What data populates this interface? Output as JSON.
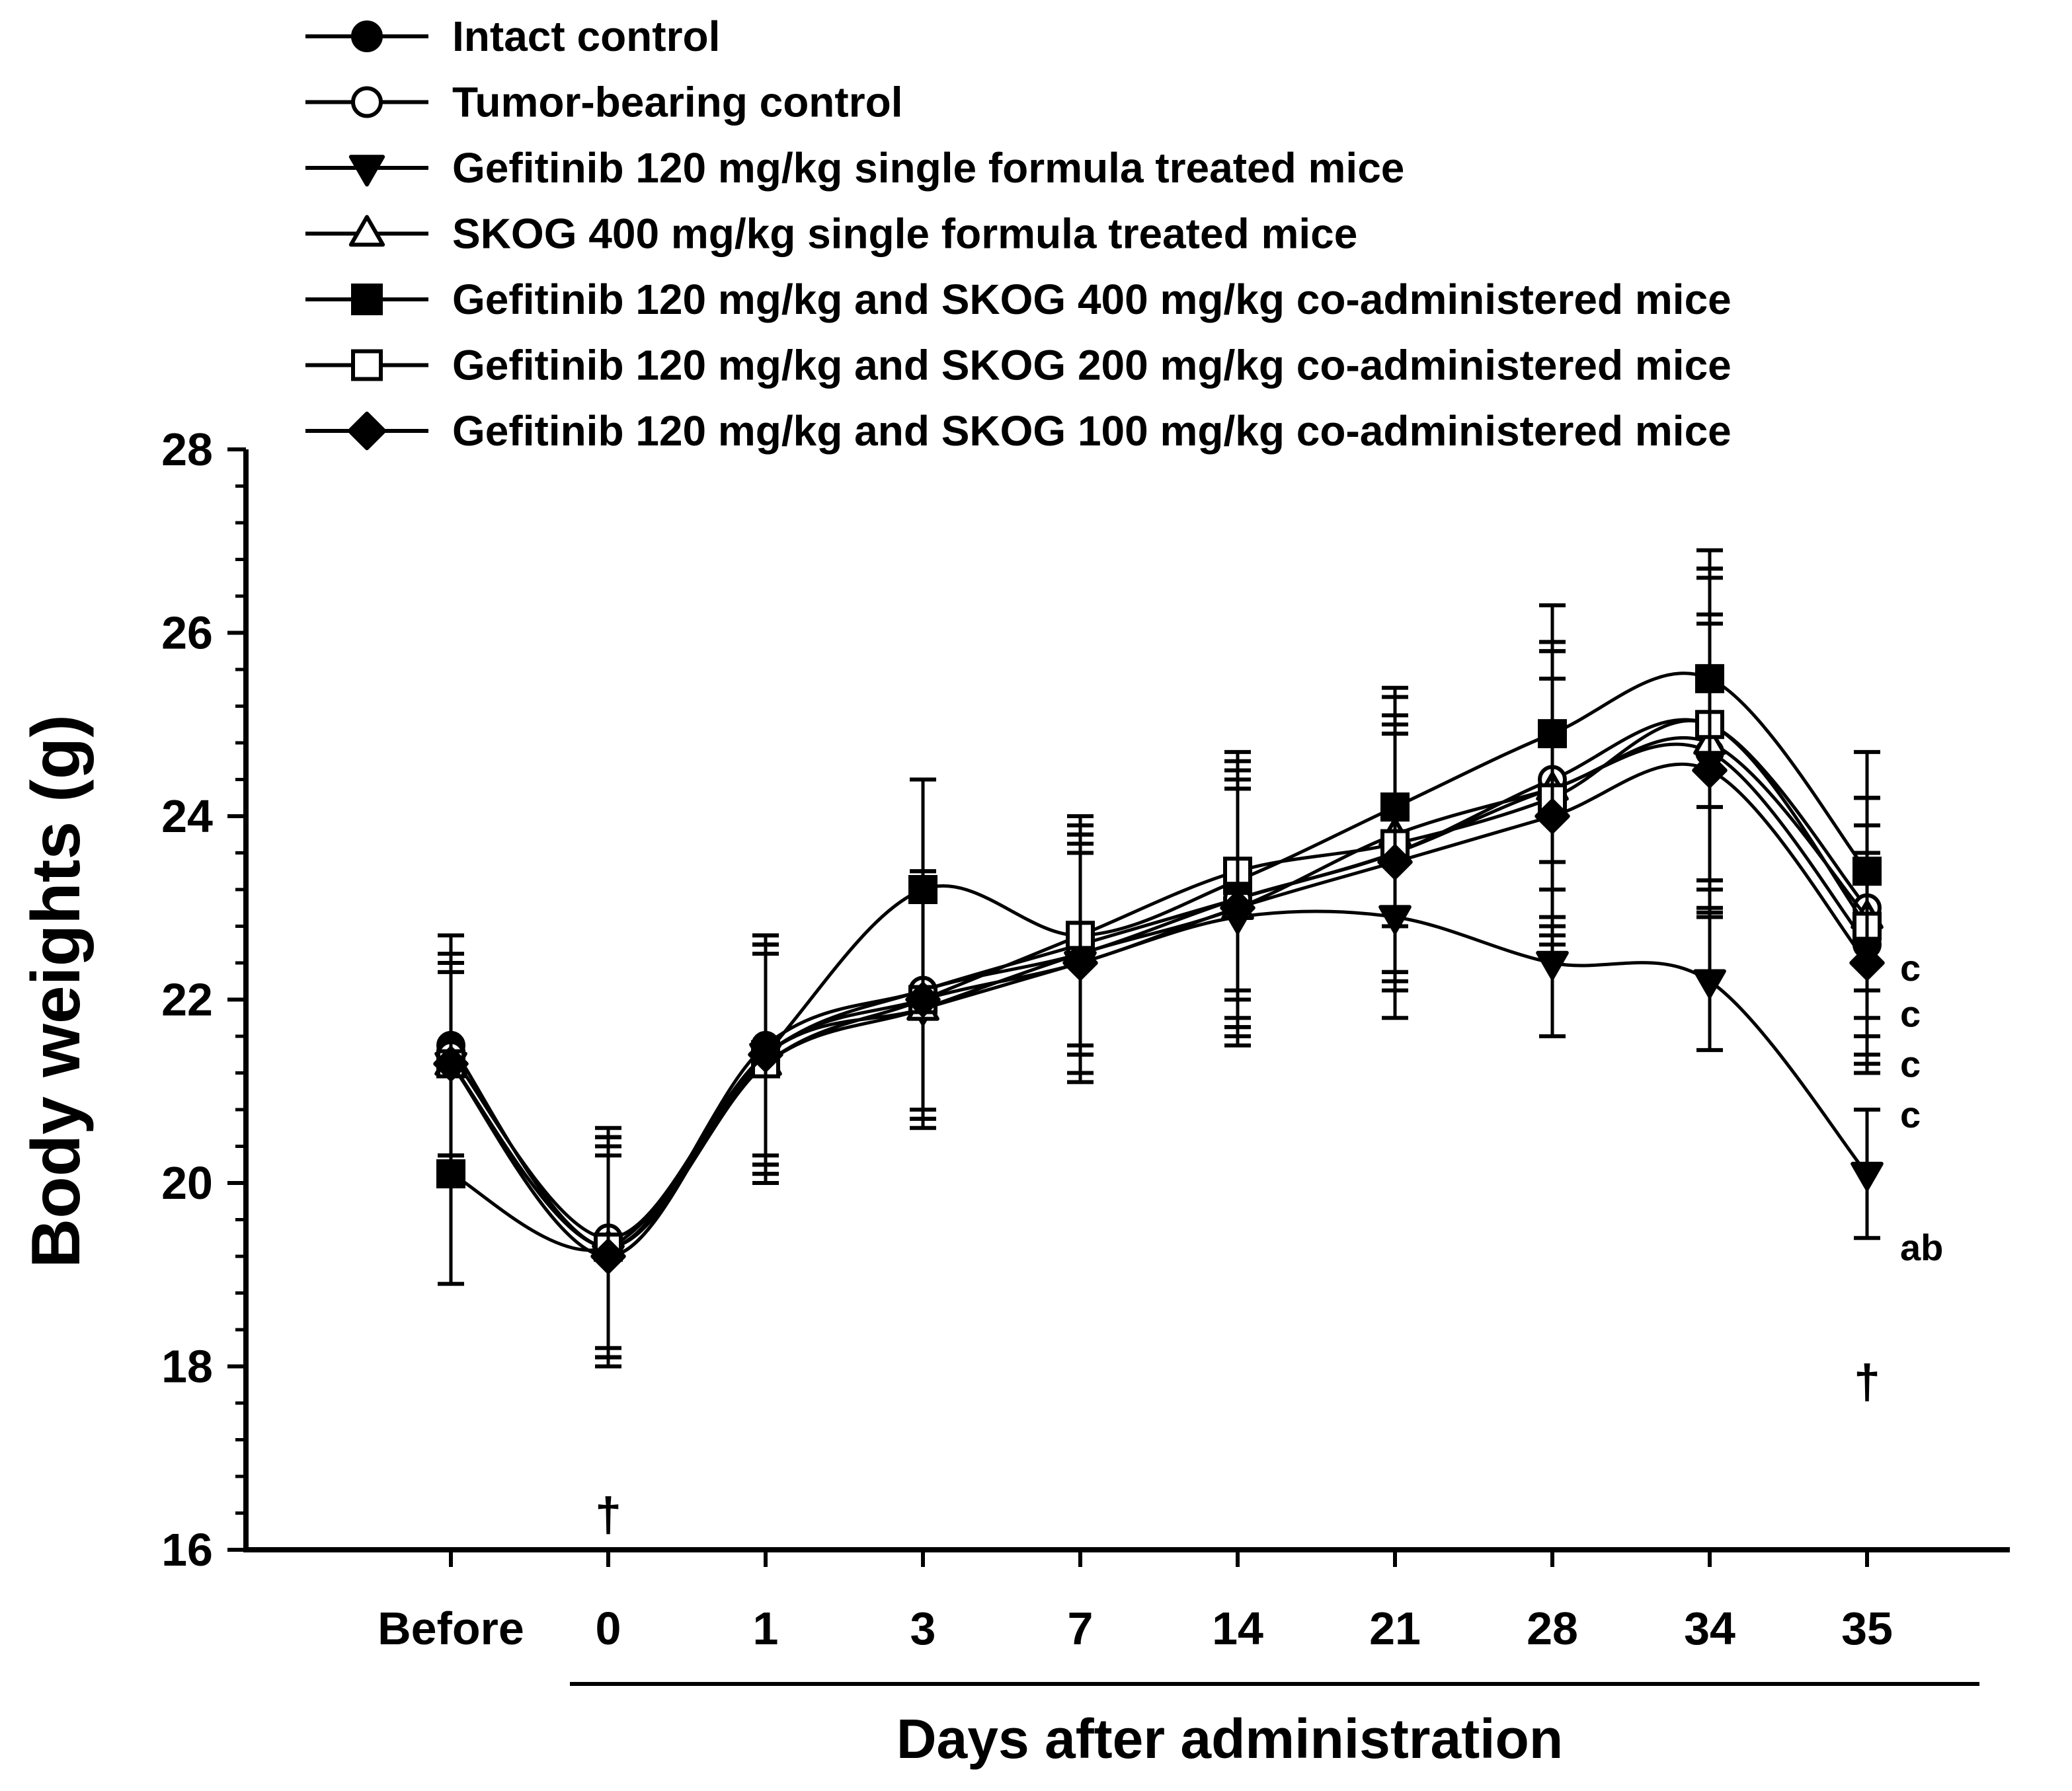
{
  "chart_data": {
    "type": "line",
    "xlabel": "Days after administration",
    "ylabel": "Body weights (g)",
    "ylim": [
      16,
      28
    ],
    "yticks": [
      16,
      18,
      20,
      22,
      24,
      26,
      28
    ],
    "categories": [
      "Before",
      "0",
      "1",
      "3",
      "7",
      "14",
      "21",
      "28",
      "34",
      "35"
    ],
    "legend_position": "top",
    "series": [
      {
        "name": "Intact control",
        "marker": "filled-circle",
        "values": [
          21.5,
          19.3,
          21.5,
          22.1,
          22.6,
          23.1,
          23.6,
          24.3,
          24.7,
          22.6
        ],
        "errors": [
          1.2,
          1.2,
          1.2,
          1.3,
          1.2,
          1.3,
          1.3,
          1.5,
          1.5,
          1.3
        ]
      },
      {
        "name": "Tumor-bearing control",
        "marker": "open-circle",
        "values": [
          21.4,
          19.4,
          21.4,
          22.1,
          22.5,
          23.1,
          23.6,
          24.4,
          25.0,
          23.0
        ],
        "errors": [
          1.1,
          1.2,
          1.3,
          1.3,
          1.3,
          1.4,
          1.4,
          1.5,
          1.7,
          1.2
        ]
      },
      {
        "name": "Gefitinib 120 mg/kg single formula treated mice",
        "marker": "filled-triangle-down",
        "values": [
          21.3,
          19.2,
          21.4,
          21.9,
          22.4,
          22.9,
          22.9,
          22.4,
          22.2,
          20.1
        ],
        "errors": [
          1.0,
          1.1,
          1.2,
          1.2,
          1.3,
          1.4,
          1.1,
          0.8,
          0.75,
          0.7
        ]
      },
      {
        "name": "SKOG 400 mg/kg single formula treated mice",
        "marker": "open-triangle-up",
        "values": [
          21.3,
          19.3,
          21.3,
          21.9,
          22.5,
          23.0,
          23.8,
          24.3,
          24.8,
          22.9
        ],
        "errors": [
          1.1,
          1.2,
          1.3,
          1.3,
          1.3,
          1.4,
          1.5,
          1.6,
          1.8,
          1.3
        ]
      },
      {
        "name": "Gefitinib 120 mg/kg and SKOG 400 mg/kg co-administered mice",
        "marker": "filled-square",
        "values": [
          20.1,
          19.3,
          21.4,
          23.2,
          22.7,
          23.3,
          24.1,
          24.9,
          25.5,
          23.4
        ],
        "errors": [
          1.2,
          1.2,
          1.2,
          1.2,
          1.2,
          1.3,
          1.3,
          1.4,
          1.4,
          1.3
        ]
      },
      {
        "name": "Gefitinib 120 mg/kg and SKOG 200 mg/kg co-administered mice",
        "marker": "open-square",
        "values": [
          21.3,
          19.3,
          21.3,
          22.0,
          22.7,
          23.4,
          23.7,
          24.2,
          25.0,
          22.8
        ],
        "errors": [
          1.1,
          1.2,
          1.2,
          1.3,
          1.3,
          1.3,
          1.4,
          1.6,
          1.7,
          1.4
        ]
      },
      {
        "name": "Gefitinib 120 mg/kg and SKOG 100 mg/kg co-administered mice",
        "marker": "filled-diamond",
        "values": [
          21.3,
          19.2,
          21.4,
          22.0,
          22.4,
          23.0,
          23.5,
          24.0,
          24.5,
          22.4
        ],
        "errors": [
          1.1,
          1.2,
          1.2,
          1.2,
          1.2,
          1.3,
          1.4,
          1.5,
          1.6,
          1.2
        ]
      }
    ],
    "annotations": [
      {
        "text": "c",
        "category": "35",
        "y": 22.35
      },
      {
        "text": "c",
        "category": "35",
        "y": 21.85
      },
      {
        "text": "c",
        "category": "35",
        "y": 21.3
      },
      {
        "text": "c",
        "category": "35",
        "y": 20.75
      },
      {
        "text": "ab",
        "category": "35",
        "y": 19.3
      }
    ],
    "daggers": [
      {
        "text": "†",
        "category": "0",
        "y": 16.35
      },
      {
        "text": "†",
        "category": "35",
        "y": 17.8
      }
    ]
  }
}
